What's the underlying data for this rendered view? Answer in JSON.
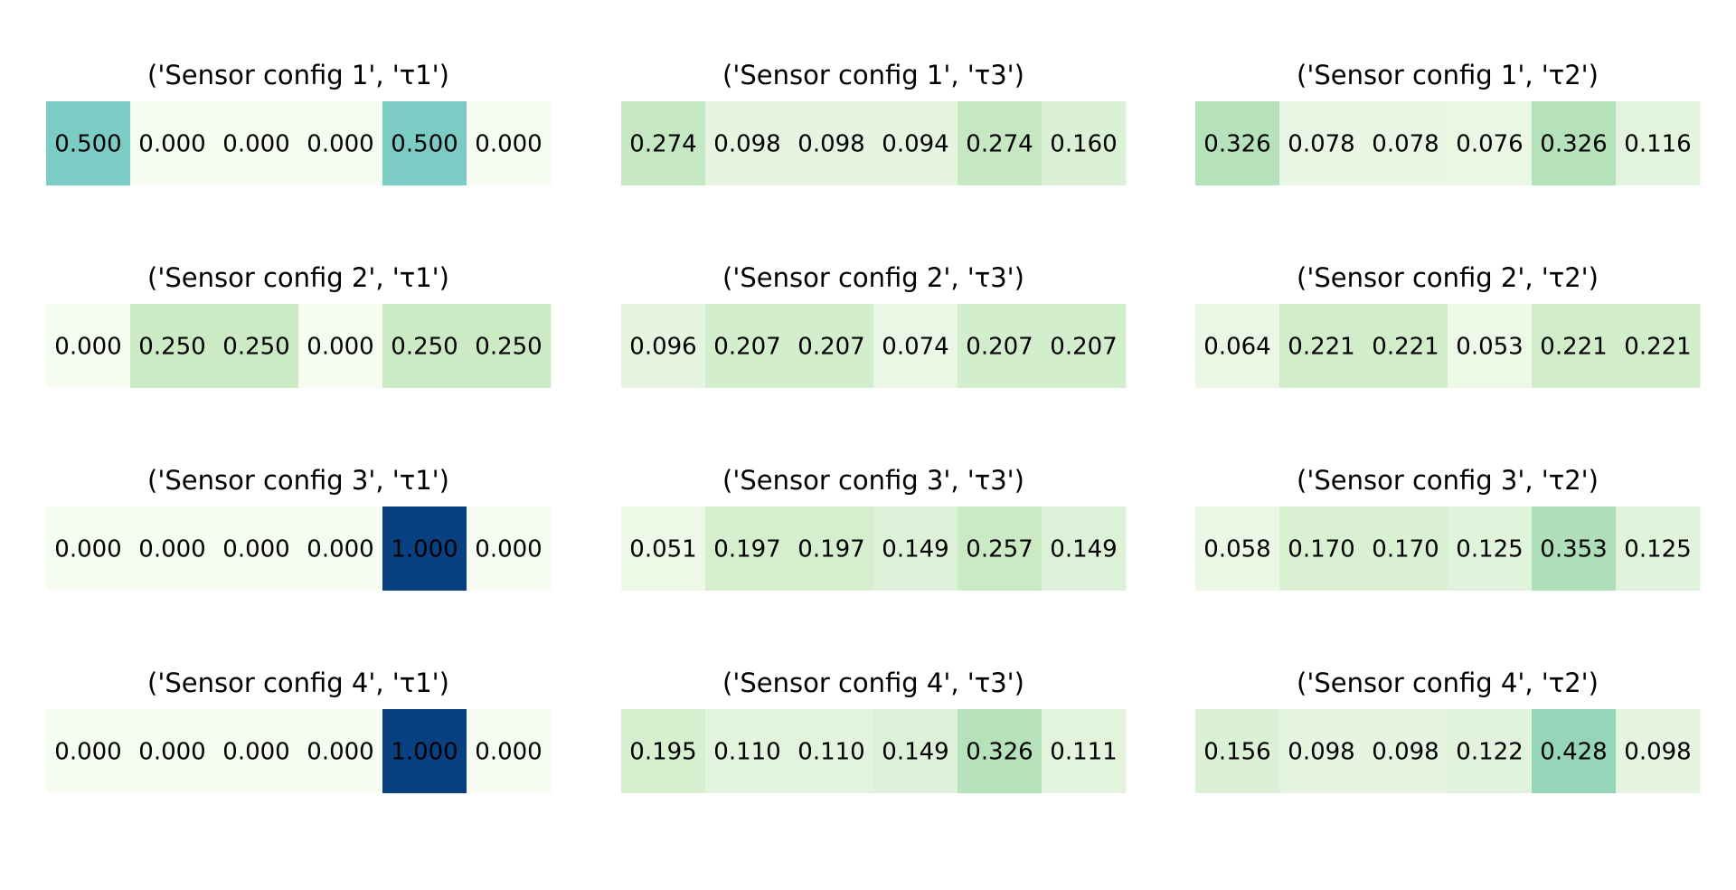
{
  "chart_data": [
    {
      "type": "heatmap",
      "title": "('Sensor config 1', 'τ1')",
      "values": [
        0.5,
        0.0,
        0.0,
        0.0,
        0.5,
        0.0
      ]
    },
    {
      "type": "heatmap",
      "title": "('Sensor config 1', 'τ3')",
      "values": [
        0.274,
        0.098,
        0.098,
        0.094,
        0.274,
        0.16
      ]
    },
    {
      "type": "heatmap",
      "title": "('Sensor config 1', 'τ2')",
      "values": [
        0.326,
        0.078,
        0.078,
        0.076,
        0.326,
        0.116
      ]
    },
    {
      "type": "heatmap",
      "title": "('Sensor config 2', 'τ1')",
      "values": [
        0.0,
        0.25,
        0.25,
        0.0,
        0.25,
        0.25
      ]
    },
    {
      "type": "heatmap",
      "title": "('Sensor config 2', 'τ3')",
      "values": [
        0.096,
        0.207,
        0.207,
        0.074,
        0.207,
        0.207
      ]
    },
    {
      "type": "heatmap",
      "title": "('Sensor config 2', 'τ2')",
      "values": [
        0.064,
        0.221,
        0.221,
        0.053,
        0.221,
        0.221
      ]
    },
    {
      "type": "heatmap",
      "title": "('Sensor config 3', 'τ1')",
      "values": [
        0.0,
        0.0,
        0.0,
        0.0,
        1.0,
        0.0
      ]
    },
    {
      "type": "heatmap",
      "title": "('Sensor config 3', 'τ3')",
      "values": [
        0.051,
        0.197,
        0.197,
        0.149,
        0.257,
        0.149
      ]
    },
    {
      "type": "heatmap",
      "title": "('Sensor config 3', 'τ2')",
      "values": [
        0.058,
        0.17,
        0.17,
        0.125,
        0.353,
        0.125
      ]
    },
    {
      "type": "heatmap",
      "title": "('Sensor config 4', 'τ1')",
      "values": [
        0.0,
        0.0,
        0.0,
        0.0,
        1.0,
        0.0
      ]
    },
    {
      "type": "heatmap",
      "title": "('Sensor config 4', 'τ3')",
      "values": [
        0.195,
        0.11,
        0.11,
        0.149,
        0.326,
        0.111
      ]
    },
    {
      "type": "heatmap",
      "title": "('Sensor config 4', 'τ2')",
      "values": [
        0.156,
        0.098,
        0.098,
        0.122,
        0.428,
        0.098
      ]
    }
  ],
  "colormap": "GnBu",
  "color_range": [
    0,
    1
  ],
  "grid": false,
  "axes_visible": false
}
